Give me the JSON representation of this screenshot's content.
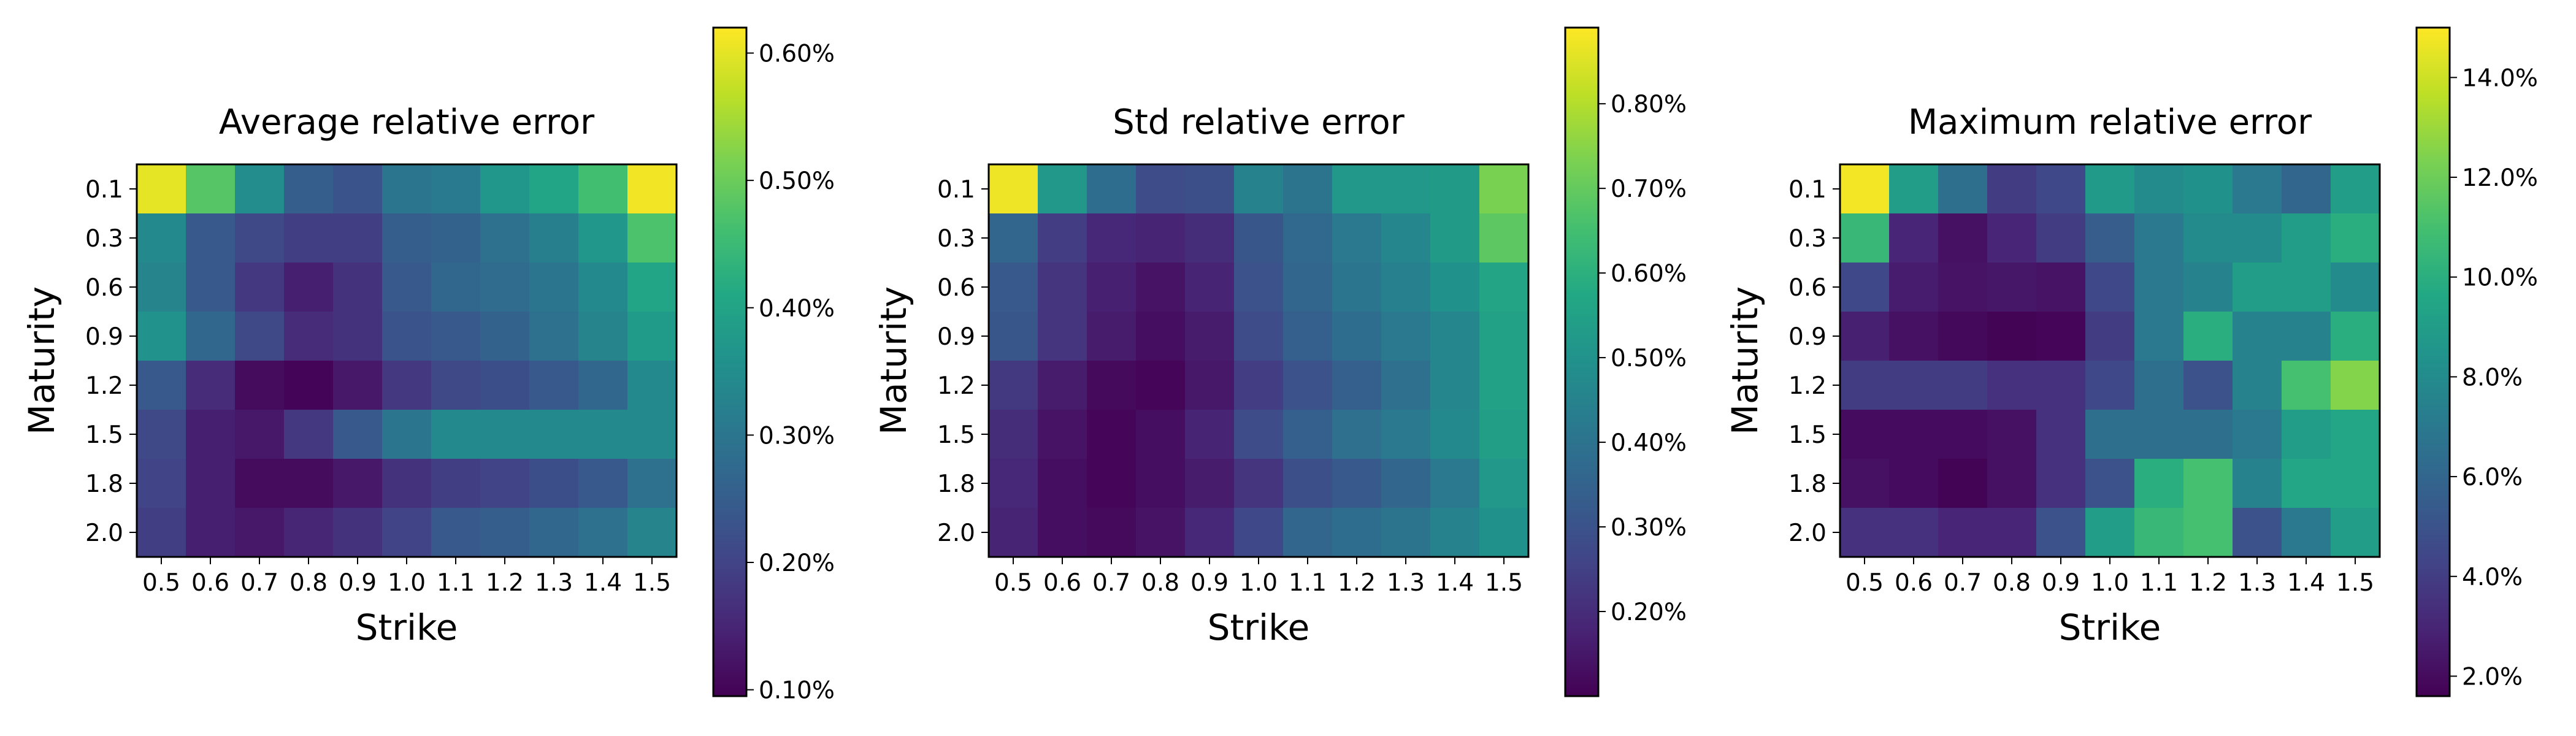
{
  "chart_data": [
    {
      "type": "heatmap",
      "title": "Average relative error",
      "xlabel": "Strike",
      "ylabel": "Maturity",
      "x": [
        "0.5",
        "0.6",
        "0.7",
        "0.8",
        "0.9",
        "1.0",
        "1.1",
        "1.2",
        "1.3",
        "1.4",
        "1.5"
      ],
      "y": [
        "0.1",
        "0.3",
        "0.6",
        "0.9",
        "1.2",
        "1.5",
        "1.8",
        "2.0"
      ],
      "value_unit": "%",
      "colorbar": {
        "min": 0.095,
        "max": 0.62,
        "ticks": [
          0.1,
          0.2,
          0.3,
          0.4,
          0.5,
          0.6
        ],
        "tick_labels": [
          "0.10%",
          "0.20%",
          "0.30%",
          "0.40%",
          "0.50%",
          "0.60%"
        ]
      },
      "colormap": "viridis",
      "values": [
        [
          0.6,
          0.48,
          0.35,
          0.25,
          0.23,
          0.3,
          0.31,
          0.37,
          0.4,
          0.46,
          0.61
        ],
        [
          0.34,
          0.24,
          0.21,
          0.19,
          0.19,
          0.25,
          0.26,
          0.29,
          0.32,
          0.37,
          0.47
        ],
        [
          0.33,
          0.24,
          0.18,
          0.14,
          0.17,
          0.24,
          0.27,
          0.28,
          0.3,
          0.34,
          0.4
        ],
        [
          0.36,
          0.27,
          0.21,
          0.16,
          0.17,
          0.23,
          0.24,
          0.26,
          0.29,
          0.33,
          0.38
        ],
        [
          0.24,
          0.16,
          0.11,
          0.1,
          0.13,
          0.18,
          0.21,
          0.22,
          0.24,
          0.27,
          0.34
        ],
        [
          0.21,
          0.14,
          0.13,
          0.18,
          0.24,
          0.3,
          0.34,
          0.34,
          0.34,
          0.34,
          0.34
        ],
        [
          0.2,
          0.14,
          0.11,
          0.11,
          0.13,
          0.17,
          0.19,
          0.2,
          0.22,
          0.24,
          0.29
        ],
        [
          0.19,
          0.14,
          0.13,
          0.15,
          0.17,
          0.2,
          0.24,
          0.25,
          0.27,
          0.29,
          0.33
        ]
      ]
    },
    {
      "type": "heatmap",
      "title": "Std relative error",
      "xlabel": "Strike",
      "ylabel": "Maturity",
      "x": [
        "0.5",
        "0.6",
        "0.7",
        "0.8",
        "0.9",
        "1.0",
        "1.1",
        "1.2",
        "1.3",
        "1.4",
        "1.5"
      ],
      "y": [
        "0.1",
        "0.3",
        "0.6",
        "0.9",
        "1.2",
        "1.5",
        "1.8",
        "2.0"
      ],
      "value_unit": "%",
      "colorbar": {
        "min": 0.1,
        "max": 0.89,
        "ticks": [
          0.2,
          0.3,
          0.4,
          0.5,
          0.6,
          0.7,
          0.8
        ],
        "tick_labels": [
          "0.20%",
          "0.30%",
          "0.40%",
          "0.50%",
          "0.60%",
          "0.70%",
          "0.80%"
        ]
      },
      "colormap": "viridis",
      "values": [
        [
          0.87,
          0.52,
          0.38,
          0.28,
          0.29,
          0.45,
          0.4,
          0.52,
          0.52,
          0.53,
          0.73
        ],
        [
          0.36,
          0.24,
          0.19,
          0.18,
          0.2,
          0.31,
          0.37,
          0.42,
          0.46,
          0.53,
          0.69
        ],
        [
          0.32,
          0.22,
          0.17,
          0.14,
          0.18,
          0.3,
          0.36,
          0.41,
          0.44,
          0.5,
          0.56
        ],
        [
          0.31,
          0.22,
          0.16,
          0.13,
          0.16,
          0.28,
          0.34,
          0.38,
          0.42,
          0.46,
          0.55
        ],
        [
          0.23,
          0.16,
          0.12,
          0.11,
          0.15,
          0.24,
          0.3,
          0.34,
          0.39,
          0.46,
          0.55
        ],
        [
          0.2,
          0.14,
          0.11,
          0.13,
          0.18,
          0.28,
          0.34,
          0.39,
          0.42,
          0.47,
          0.54
        ],
        [
          0.19,
          0.13,
          0.11,
          0.13,
          0.16,
          0.22,
          0.29,
          0.32,
          0.36,
          0.42,
          0.52
        ],
        [
          0.18,
          0.13,
          0.12,
          0.14,
          0.19,
          0.27,
          0.36,
          0.38,
          0.4,
          0.45,
          0.5
        ]
      ]
    },
    {
      "type": "heatmap",
      "title": "Maximum relative error",
      "xlabel": "Strike",
      "ylabel": "Maturity",
      "x": [
        "0.5",
        "0.6",
        "0.7",
        "0.8",
        "0.9",
        "1.0",
        "1.1",
        "1.2",
        "1.3",
        "1.4",
        "1.5"
      ],
      "y": [
        "0.1",
        "0.3",
        "0.6",
        "0.9",
        "1.2",
        "1.5",
        "1.8",
        "2.0"
      ],
      "value_unit": "%",
      "colorbar": {
        "min": 1.6,
        "max": 15.0,
        "ticks": [
          2,
          4,
          6,
          8,
          10,
          12,
          14
        ],
        "tick_labels": [
          "2.0%",
          "4.0%",
          "6.0%",
          "8.0%",
          "10.0%",
          "12.0%",
          "14.0%"
        ]
      },
      "colormap": "viridis",
      "values": [
        [
          14.8,
          9.0,
          6.5,
          4.0,
          4.5,
          8.8,
          8.0,
          8.3,
          7.0,
          6.0,
          9.0
        ],
        [
          10.5,
          3.0,
          2.2,
          3.0,
          4.0,
          5.5,
          7.0,
          8.0,
          8.0,
          9.0,
          10.0
        ],
        [
          4.5,
          2.6,
          2.3,
          2.4,
          2.3,
          4.5,
          7.0,
          7.5,
          9.0,
          9.0,
          8.0
        ],
        [
          2.8,
          2.2,
          1.9,
          1.7,
          1.8,
          4.0,
          7.0,
          10.0,
          7.5,
          7.5,
          10.0
        ],
        [
          4.0,
          4.0,
          4.0,
          3.5,
          3.5,
          4.5,
          6.5,
          5.0,
          7.5,
          11.0,
          12.5
        ],
        [
          2.0,
          2.0,
          2.0,
          2.2,
          3.5,
          6.5,
          6.5,
          6.5,
          7.0,
          9.0,
          9.5
        ],
        [
          2.2,
          2.0,
          1.7,
          2.2,
          3.5,
          5.0,
          10.0,
          11.0,
          7.5,
          9.5,
          9.5
        ],
        [
          3.5,
          3.5,
          3.0,
          3.0,
          5.0,
          9.0,
          10.5,
          11.0,
          5.0,
          7.0,
          9.0
        ]
      ]
    }
  ]
}
